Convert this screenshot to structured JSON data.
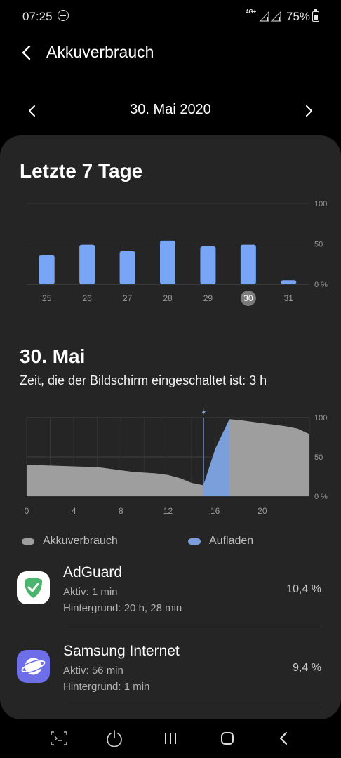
{
  "status_bar": {
    "time": "07:25",
    "network": "4G+",
    "battery_pct": "75%",
    "icons": [
      "do-not-disturb-icon",
      "signal-icon",
      "battery-icon"
    ]
  },
  "header": {
    "title": "Akkuverbrauch",
    "back_icon": "back-arrow-icon"
  },
  "date_nav": {
    "date": "30. Mai 2020",
    "prev_icon": "chevron-left-icon",
    "next_icon": "chevron-right-icon"
  },
  "weekly": {
    "title": "Letzte 7 Tage",
    "chart_data": {
      "type": "bar",
      "title": "Letzte 7 Tage",
      "categories": [
        "25",
        "26",
        "27",
        "28",
        "29",
        "30",
        "31"
      ],
      "values": [
        36,
        49,
        41,
        54,
        47,
        49,
        5
      ],
      "selected": "30",
      "ylim": [
        0,
        100
      ],
      "y_ticks": [
        "100",
        "50",
        "0 %"
      ],
      "bar_color": "#78a5f5",
      "grid": true
    }
  },
  "daily": {
    "title": "30. Mai",
    "screen_time": "Zeit, die der Bildschirm eingeschaltet ist: 3 h",
    "chart_data": {
      "type": "area",
      "x_ticks": [
        "0",
        "4",
        "8",
        "12",
        "16",
        "20"
      ],
      "y_ticks": [
        "100",
        "50",
        "0 %"
      ],
      "xlim": [
        0,
        24
      ],
      "ylim": [
        0,
        100
      ],
      "charging_marker_hour": 15,
      "series": [
        {
          "name": "Akkuverbrauch",
          "color": "#9e9e9e",
          "x": [
            0,
            2,
            4,
            6,
            7,
            8,
            9,
            10,
            11,
            12,
            12.5,
            13,
            14,
            15,
            17.2,
            18,
            19,
            20,
            21,
            22,
            23,
            24
          ],
          "y": [
            40,
            39,
            38,
            37,
            35,
            33,
            31,
            30,
            29,
            27,
            25,
            23,
            17,
            14,
            98,
            97,
            95,
            93,
            91,
            89,
            86,
            79
          ]
        },
        {
          "name": "Aufladen",
          "color": "#7b9fdb",
          "x": [
            15,
            16,
            17.2
          ],
          "y": [
            14,
            60,
            98
          ]
        }
      ]
    },
    "legend": [
      {
        "label": "Akkuverbrauch",
        "color": "#9e9e9e"
      },
      {
        "label": "Aufladen",
        "color": "#7b9fdb"
      }
    ]
  },
  "apps": [
    {
      "name": "AdGuard",
      "active": "Aktiv: 1 min",
      "background": "Hintergrund: 20 h, 28 min",
      "percent": "10,4 %",
      "icon": "adguard-icon"
    },
    {
      "name": "Samsung Internet",
      "active": "Aktiv: 56 min",
      "background": "Hintergrund: 1 min",
      "percent": "9,4 %",
      "icon": "samsung-internet-icon"
    }
  ],
  "nav_bar": {
    "icons": [
      "screenshot-icon",
      "power-icon",
      "recent-apps-icon",
      "home-icon",
      "back-icon"
    ]
  }
}
